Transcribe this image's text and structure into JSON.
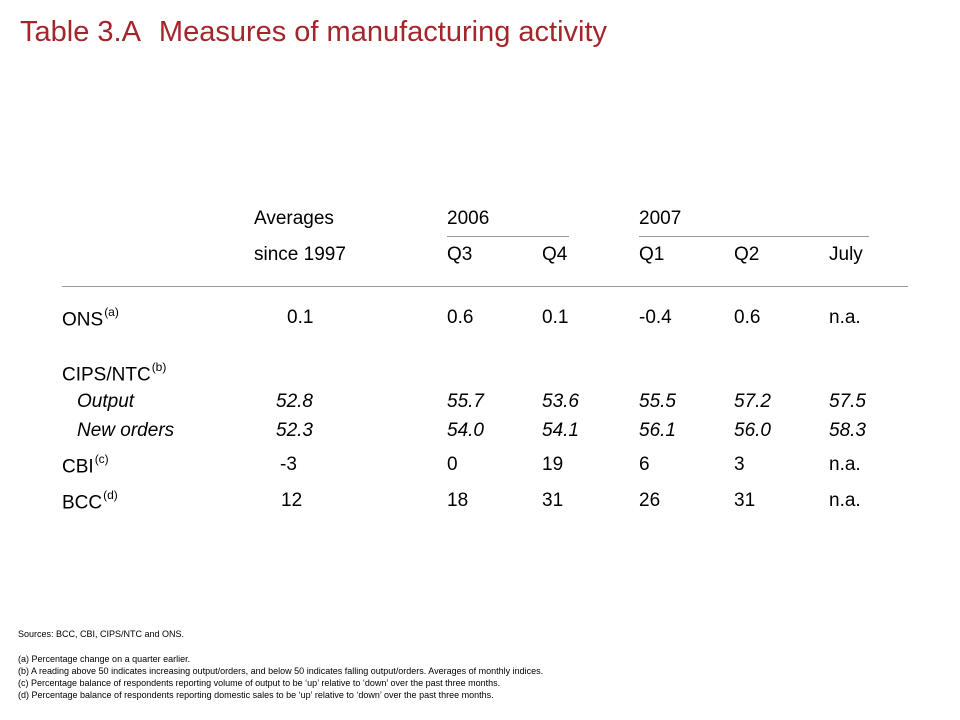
{
  "title": {
    "number": "Table 3.A",
    "text": "Measures of manufacturing activity"
  },
  "header": {
    "averages": "Averages",
    "since": "since 1997",
    "year1": "2006",
    "year2": "2007",
    "q3": "Q3",
    "q4": "Q4",
    "q1": "Q1",
    "q2": "Q2",
    "july": "July"
  },
  "rows": {
    "ons": {
      "label": "ONS",
      "sup": "(a)",
      "avg": "0.1",
      "q3_06": "0.6",
      "q4_06": "0.1",
      "q1_07": "-0.4",
      "q2_07": "0.6",
      "july": "n.a."
    },
    "cips": {
      "label": "CIPS/NTC",
      "sup": "(b)"
    },
    "output": {
      "label": "Output",
      "avg": "52.8",
      "q3_06": "55.7",
      "q4_06": "53.6",
      "q1_07": "55.5",
      "q2_07": "57.2",
      "july": "57.5"
    },
    "orders": {
      "label": "New orders",
      "avg": "52.3",
      "q3_06": "54.0",
      "q4_06": "54.1",
      "q1_07": "56.1",
      "q2_07": "56.0",
      "july": "58.3"
    },
    "cbi": {
      "label": "CBI",
      "sup": "(c)",
      "avg": "-3",
      "q3_06": "0",
      "q4_06": "19",
      "q1_07": "6",
      "q2_07": "3",
      "july": "n.a."
    },
    "bcc": {
      "label": "BCC",
      "sup": "(d)",
      "avg": "12",
      "q3_06": "18",
      "q4_06": "31",
      "q1_07": "26",
      "q2_07": "31",
      "july": "n.a."
    }
  },
  "footnotes": {
    "sources": "Sources:  BCC, CBI, CIPS/NTC and ONS.",
    "a": "(a)  Percentage change on a quarter earlier.",
    "b": "(b)  A reading above 50 indicates increasing output/orders, and below 50 indicates falling output/orders.  Averages of monthly indices.",
    "c": "(c)  Percentage balance of respondents reporting volume of output to be ‘up’ relative to ‘down’ over the past three months.",
    "d": "(d)  Percentage balance of respondents reporting domestic sales to be ‘up’ relative to ‘down’ over the past three months."
  },
  "colors": {
    "title": "#a3262a",
    "rule": "#999999"
  }
}
